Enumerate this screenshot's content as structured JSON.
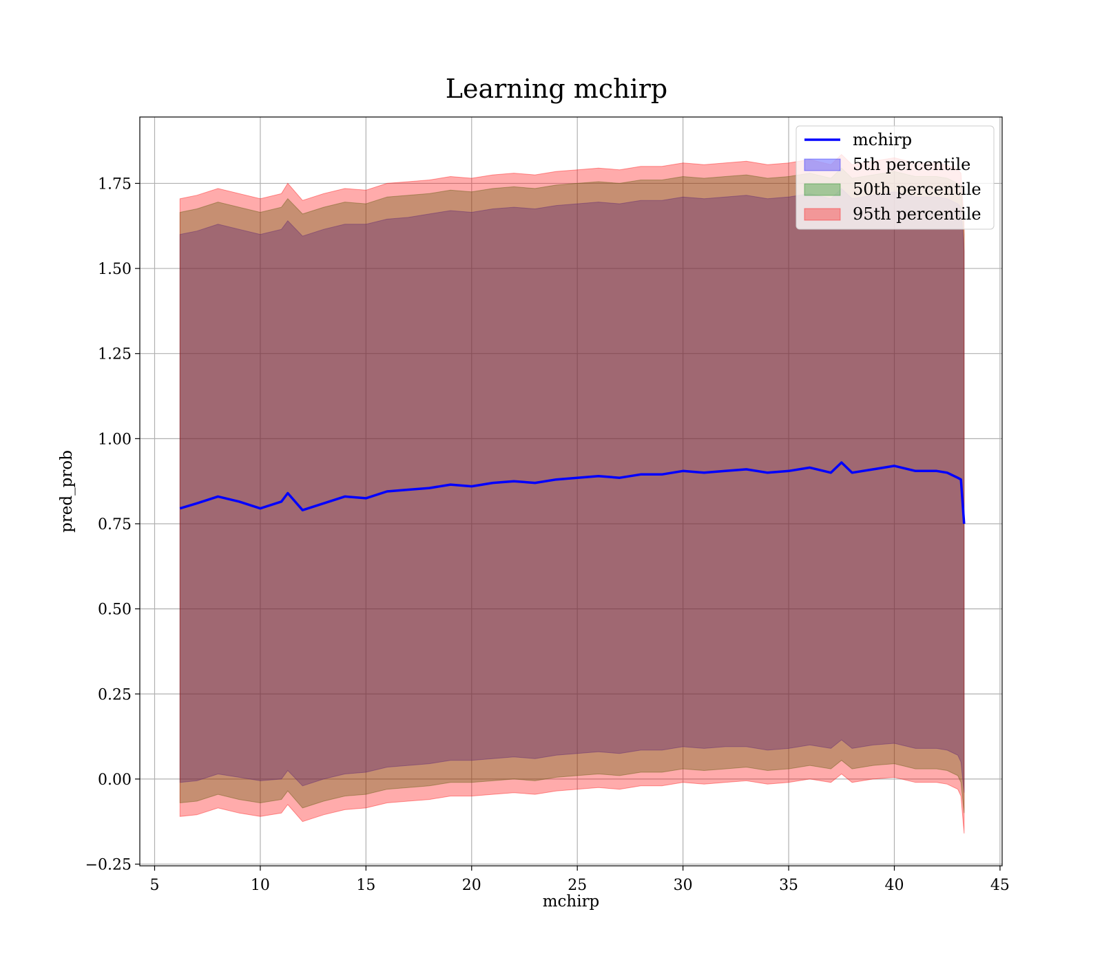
{
  "chart_data": {
    "type": "area",
    "title": "Learning mchirp",
    "xlabel": "mchirp",
    "ylabel": "pred_prob",
    "xlim": [
      4.3,
      45.1
    ],
    "ylim": [
      -0.255,
      1.945
    ],
    "x_ticks": [
      5,
      10,
      15,
      20,
      25,
      30,
      35,
      40,
      45
    ],
    "x_tick_labels": [
      "5",
      "10",
      "15",
      "20",
      "25",
      "30",
      "35",
      "40",
      "45"
    ],
    "y_ticks": [
      -0.25,
      0.0,
      0.25,
      0.5,
      0.75,
      1.0,
      1.25,
      1.5,
      1.75
    ],
    "y_tick_labels": [
      "−0.25",
      "0.00",
      "0.25",
      "0.50",
      "0.75",
      "1.00",
      "1.25",
      "1.50",
      "1.75"
    ],
    "grid": true,
    "legend_position": "top-right",
    "x": [
      6.2,
      7,
      8,
      9,
      10,
      11,
      11.3,
      12,
      13,
      14,
      15,
      16,
      17,
      18,
      19,
      20,
      21,
      22,
      23,
      24,
      25,
      26,
      27,
      28,
      29,
      30,
      31,
      32,
      33,
      34,
      35,
      36,
      37,
      37.5,
      38,
      39,
      40,
      41,
      42,
      42.5,
      43,
      43.15,
      43.3
    ],
    "series": [
      {
        "name": "mchirp",
        "kind": "line",
        "color": "#0000ff",
        "values": [
          0.795,
          0.81,
          0.83,
          0.815,
          0.795,
          0.815,
          0.84,
          0.79,
          0.81,
          0.83,
          0.825,
          0.845,
          0.85,
          0.855,
          0.865,
          0.86,
          0.87,
          0.875,
          0.87,
          0.88,
          0.885,
          0.89,
          0.885,
          0.895,
          0.895,
          0.905,
          0.9,
          0.905,
          0.91,
          0.9,
          0.905,
          0.915,
          0.9,
          0.93,
          0.9,
          0.91,
          0.92,
          0.905,
          0.905,
          0.9,
          0.885,
          0.88,
          0.75
        ]
      },
      {
        "name": "5th percentile",
        "kind": "band",
        "color": "#0000ff",
        "lower": [
          -0.01,
          -0.005,
          0.015,
          0.005,
          -0.005,
          0.0,
          0.025,
          -0.02,
          0.0,
          0.015,
          0.02,
          0.035,
          0.04,
          0.045,
          0.055,
          0.055,
          0.06,
          0.065,
          0.06,
          0.07,
          0.075,
          0.08,
          0.075,
          0.085,
          0.085,
          0.095,
          0.09,
          0.095,
          0.095,
          0.085,
          0.09,
          0.1,
          0.09,
          0.115,
          0.09,
          0.1,
          0.105,
          0.09,
          0.09,
          0.085,
          0.07,
          0.05,
          -0.04
        ],
        "upper": [
          1.6,
          1.61,
          1.63,
          1.615,
          1.6,
          1.615,
          1.64,
          1.595,
          1.615,
          1.63,
          1.63,
          1.645,
          1.65,
          1.66,
          1.67,
          1.665,
          1.675,
          1.68,
          1.675,
          1.685,
          1.69,
          1.695,
          1.69,
          1.7,
          1.7,
          1.71,
          1.705,
          1.71,
          1.715,
          1.705,
          1.71,
          1.72,
          1.705,
          1.735,
          1.705,
          1.715,
          1.725,
          1.71,
          1.71,
          1.705,
          1.69,
          1.68,
          1.55
        ]
      },
      {
        "name": "50th percentile",
        "kind": "band",
        "color": "#008000",
        "lower": [
          -0.07,
          -0.065,
          -0.045,
          -0.06,
          -0.07,
          -0.06,
          -0.035,
          -0.085,
          -0.065,
          -0.05,
          -0.045,
          -0.03,
          -0.025,
          -0.02,
          -0.01,
          -0.01,
          -0.005,
          0.0,
          -0.005,
          0.005,
          0.01,
          0.015,
          0.01,
          0.02,
          0.02,
          0.03,
          0.025,
          0.03,
          0.035,
          0.025,
          0.03,
          0.04,
          0.03,
          0.055,
          0.03,
          0.04,
          0.045,
          0.03,
          0.03,
          0.025,
          0.01,
          -0.01,
          -0.1
        ],
        "upper": [
          1.665,
          1.675,
          1.695,
          1.68,
          1.665,
          1.68,
          1.705,
          1.66,
          1.68,
          1.695,
          1.69,
          1.71,
          1.715,
          1.72,
          1.73,
          1.725,
          1.735,
          1.74,
          1.735,
          1.745,
          1.75,
          1.755,
          1.75,
          1.76,
          1.76,
          1.77,
          1.765,
          1.77,
          1.775,
          1.765,
          1.77,
          1.78,
          1.765,
          1.795,
          1.765,
          1.775,
          1.785,
          1.77,
          1.77,
          1.765,
          1.75,
          1.74,
          1.6
        ]
      },
      {
        "name": "95th percentile",
        "kind": "band",
        "color": "#ff0000",
        "lower": [
          -0.11,
          -0.105,
          -0.085,
          -0.1,
          -0.11,
          -0.1,
          -0.075,
          -0.125,
          -0.105,
          -0.09,
          -0.085,
          -0.07,
          -0.065,
          -0.06,
          -0.05,
          -0.05,
          -0.045,
          -0.04,
          -0.045,
          -0.035,
          -0.03,
          -0.025,
          -0.03,
          -0.02,
          -0.02,
          -0.01,
          -0.015,
          -0.01,
          -0.005,
          -0.015,
          -0.01,
          0.0,
          -0.01,
          0.015,
          -0.01,
          0.0,
          0.005,
          -0.01,
          -0.01,
          -0.015,
          -0.03,
          -0.05,
          -0.16
        ],
        "upper": [
          1.705,
          1.715,
          1.735,
          1.72,
          1.705,
          1.72,
          1.75,
          1.7,
          1.72,
          1.735,
          1.73,
          1.75,
          1.755,
          1.76,
          1.77,
          1.765,
          1.775,
          1.78,
          1.775,
          1.785,
          1.79,
          1.795,
          1.79,
          1.8,
          1.8,
          1.81,
          1.805,
          1.81,
          1.815,
          1.805,
          1.81,
          1.82,
          1.805,
          1.835,
          1.805,
          1.815,
          1.825,
          1.81,
          1.81,
          1.805,
          1.79,
          1.78,
          1.64
        ]
      }
    ]
  }
}
